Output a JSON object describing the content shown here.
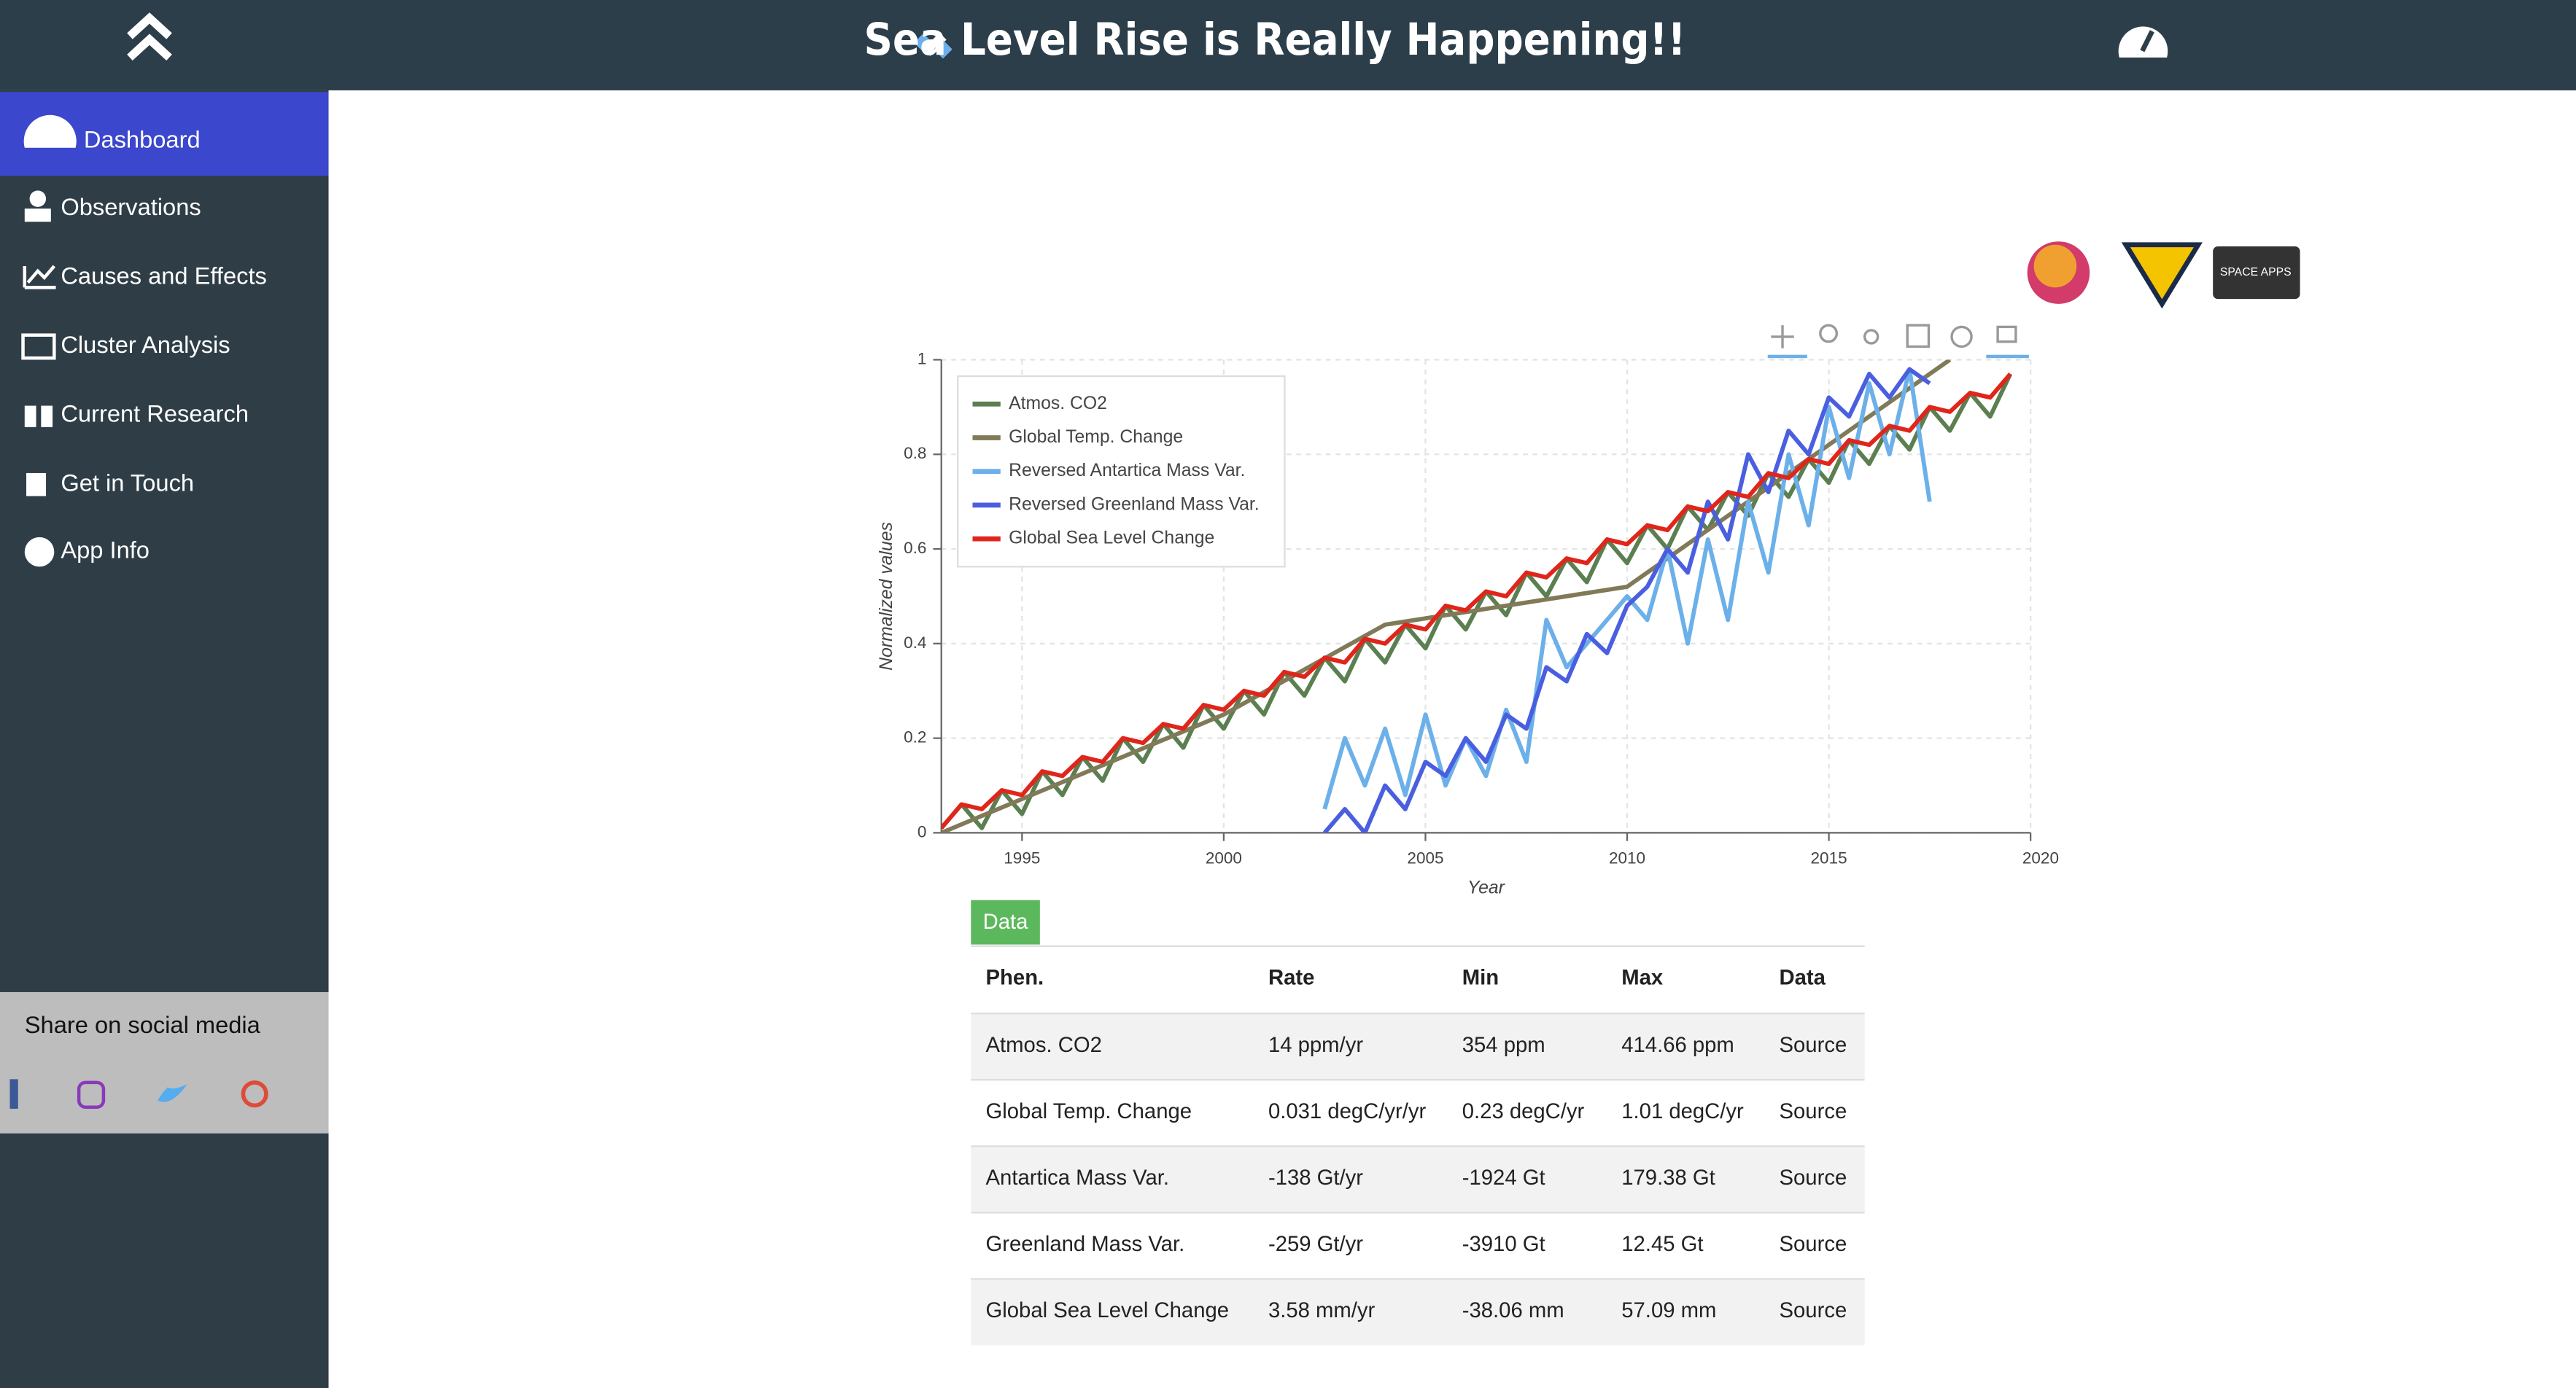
{
  "header": {
    "title": "Sea Level Rise is Really Happening!!"
  },
  "sidebar": {
    "items": [
      "Dashboard",
      "Observations",
      "Causes and Effects",
      "Cluster Analysis",
      "Current Research",
      "Get in Touch",
      "App Info"
    ],
    "share": "Share on social media"
  },
  "logos": [
    "SPACE APPS"
  ],
  "chart_data": {
    "type": "line",
    "x_label": "Year",
    "y_label": "Normalized values",
    "xlim": [
      1993,
      2020
    ],
    "xticks": [
      1995,
      2000,
      2005,
      2010,
      2015,
      2020
    ],
    "ylim": [
      0,
      1
    ],
    "yticks": [
      0,
      0.2,
      0.4,
      0.6,
      0.8,
      1
    ],
    "grid": true,
    "legend": "top-left",
    "x": [
      1993,
      1993.5,
      1994,
      1994.5,
      1995,
      1995.5,
      1996,
      1996.5,
      1997,
      1997.5,
      1998,
      1998.5,
      1999,
      1999.5,
      2000,
      2000.5,
      2001,
      2001.5,
      2002,
      2002.5,
      2003,
      2003.5,
      2004,
      2004.5,
      2005,
      2005.5,
      2006,
      2006.5,
      2007,
      2007.5,
      2008,
      2008.5,
      2009,
      2009.5,
      2010,
      2010.5,
      2011,
      2011.5,
      2012,
      2012.5,
      2013,
      2013.5,
      2014,
      2014.5,
      2015,
      2015.5,
      2016,
      2016.5,
      2017,
      2017.5,
      2018,
      2018.5,
      2019,
      2019.5
    ],
    "series": [
      {
        "name": "Atmos. CO2",
        "color": "#5b7f50",
        "values": [
          0.01,
          0.06,
          0.01,
          0.09,
          0.04,
          0.13,
          0.08,
          0.16,
          0.11,
          0.2,
          0.15,
          0.23,
          0.18,
          0.27,
          0.22,
          0.3,
          0.25,
          0.34,
          0.29,
          0.37,
          0.32,
          0.41,
          0.36,
          0.44,
          0.39,
          0.48,
          0.43,
          0.51,
          0.46,
          0.55,
          0.5,
          0.58,
          0.53,
          0.62,
          0.57,
          0.65,
          0.6,
          0.69,
          0.64,
          0.72,
          0.67,
          0.76,
          0.71,
          0.79,
          0.74,
          0.83,
          0.78,
          0.86,
          0.81,
          0.9,
          0.85,
          0.93,
          0.88,
          0.97
        ]
      },
      {
        "name": "Global Temp. Change",
        "color": "#807a58",
        "x": [
          1993,
          2000,
          2004,
          2010,
          2018
        ],
        "values": [
          0,
          0.25,
          0.44,
          0.52,
          1
        ]
      },
      {
        "name": "Reversed Antartica Mass Var.",
        "color": "#6cb0ea",
        "x": [
          2002.5,
          2003,
          2003.5,
          2004,
          2004.5,
          2005,
          2005.5,
          2006,
          2006.5,
          2007,
          2007.5,
          2008,
          2008.5,
          2009,
          2009.5,
          2010,
          2010.5,
          2011,
          2011.5,
          2012,
          2012.5,
          2013,
          2013.5,
          2014,
          2014.5,
          2015,
          2015.5,
          2016,
          2016.5,
          2017,
          2017.5
        ],
        "values": [
          0.05,
          0.2,
          0.1,
          0.22,
          0.08,
          0.25,
          0.1,
          0.2,
          0.12,
          0.26,
          0.15,
          0.45,
          0.35,
          0.4,
          0.45,
          0.5,
          0.45,
          0.6,
          0.4,
          0.62,
          0.45,
          0.7,
          0.55,
          0.8,
          0.65,
          0.9,
          0.75,
          0.95,
          0.8,
          0.98,
          0.7
        ]
      },
      {
        "name": "Reversed Greenland Mass Var.",
        "color": "#4a5fe0",
        "x": [
          2002.5,
          2003,
          2003.5,
          2004,
          2004.5,
          2005,
          2005.5,
          2006,
          2006.5,
          2007,
          2007.5,
          2008,
          2008.5,
          2009,
          2009.5,
          2010,
          2010.5,
          2011,
          2011.5,
          2012,
          2012.5,
          2013,
          2013.5,
          2014,
          2014.5,
          2015,
          2015.5,
          2016,
          2016.5,
          2017,
          2017.5
        ],
        "values": [
          0,
          0.05,
          0,
          0.1,
          0.05,
          0.15,
          0.12,
          0.2,
          0.15,
          0.25,
          0.22,
          0.35,
          0.32,
          0.42,
          0.38,
          0.48,
          0.52,
          0.6,
          0.55,
          0.7,
          0.62,
          0.8,
          0.72,
          0.85,
          0.8,
          0.92,
          0.88,
          0.97,
          0.92,
          0.98,
          0.95
        ]
      },
      {
        "name": "Global Sea Level Change",
        "color": "#e0251b",
        "values": [
          0.01,
          0.06,
          0.05,
          0.09,
          0.08,
          0.13,
          0.12,
          0.16,
          0.15,
          0.2,
          0.19,
          0.23,
          0.22,
          0.27,
          0.26,
          0.3,
          0.29,
          0.34,
          0.33,
          0.37,
          0.36,
          0.41,
          0.4,
          0.44,
          0.43,
          0.48,
          0.47,
          0.51,
          0.5,
          0.55,
          0.54,
          0.58,
          0.57,
          0.62,
          0.61,
          0.65,
          0.64,
          0.69,
          0.68,
          0.72,
          0.71,
          0.76,
          0.75,
          0.79,
          0.78,
          0.83,
          0.82,
          0.86,
          0.85,
          0.9,
          0.89,
          0.93,
          0.92,
          0.97
        ]
      }
    ]
  },
  "table": {
    "tab": "Data",
    "headers": [
      "Phen.",
      "Rate",
      "Min",
      "Max",
      "Data"
    ],
    "rows": [
      [
        "Atmos. CO2",
        "14 ppm/yr",
        "354 ppm",
        "414.66 ppm",
        "Source"
      ],
      [
        "Global Temp. Change",
        "0.031 degC/yr/yr",
        "0.23 degC/yr",
        "1.01 degC/yr",
        "Source"
      ],
      [
        "Antartica Mass Var.",
        "-138 Gt/yr",
        "-1924 Gt",
        "179.38 Gt",
        "Source"
      ],
      [
        "Greenland Mass Var.",
        "-259 Gt/yr",
        "-3910 Gt",
        "12.45 Gt",
        "Source"
      ],
      [
        "Global Sea Level Change",
        "3.58 mm/yr",
        "-38.06 mm",
        "57.09 mm",
        "Source"
      ]
    ]
  }
}
